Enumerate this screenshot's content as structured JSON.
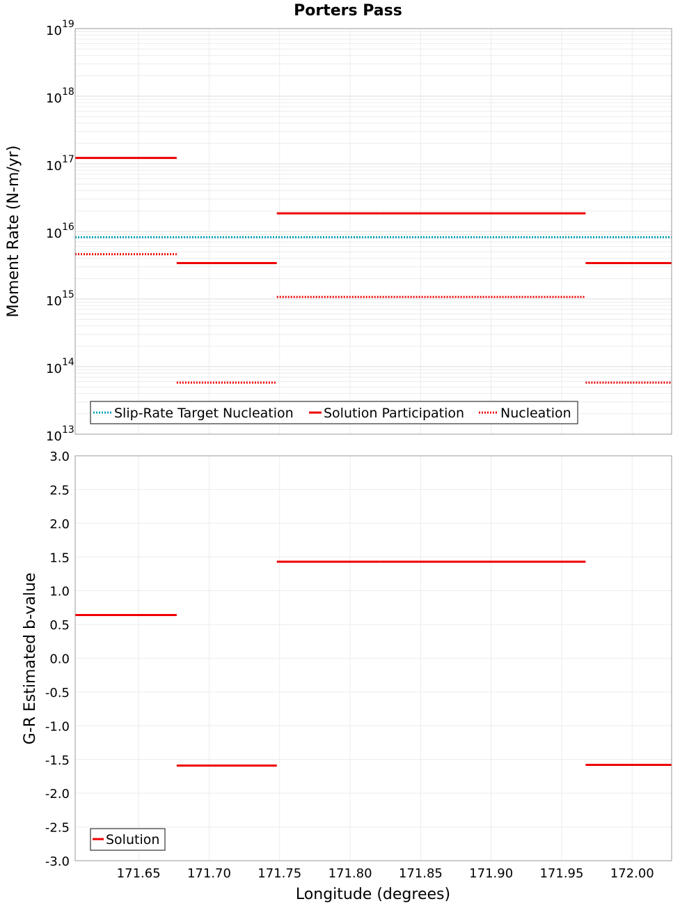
{
  "chart_data": [
    {
      "type": "line",
      "title": "Porters Pass",
      "xlabel": "",
      "ylabel": "Moment Rate (N-m/yr)",
      "yscale": "log",
      "ylim": [
        10000000000000.0,
        1e+19
      ],
      "xlim": [
        171.605,
        172.028
      ],
      "y_ticks": [
        {
          "base": "10",
          "exp": "19",
          "value": 1e+19
        },
        {
          "base": "10",
          "exp": "18",
          "value": 1e+18
        },
        {
          "base": "10",
          "exp": "17",
          "value": 1e+17
        },
        {
          "base": "10",
          "exp": "16",
          "value": 1e+16
        },
        {
          "base": "10",
          "exp": "15",
          "value": 1000000000000000.0
        },
        {
          "base": "10",
          "exp": "14",
          "value": 100000000000000.0
        },
        {
          "base": "10",
          "exp": "13",
          "value": 10000000000000.0
        }
      ],
      "series": [
        {
          "name": "Slip-Rate Target Nucleation",
          "style": "dotted",
          "color": "#00a0b4",
          "segments": [
            [
              171.605,
              172.028,
              8200000000000000.0
            ]
          ]
        },
        {
          "name": "Solution Participation",
          "style": "solid",
          "color": "#ee0000",
          "segments": [
            [
              171.605,
              171.677,
              1.22e+17
            ],
            [
              171.677,
              171.748,
              3400000000000000.0
            ],
            [
              171.748,
              171.821,
              1.85e+16
            ],
            [
              171.821,
              171.894,
              1.85e+16
            ],
            [
              171.894,
              171.967,
              1.85e+16
            ],
            [
              171.967,
              172.028,
              3400000000000000.0
            ]
          ]
        },
        {
          "name": "Nucleation",
          "style": "dotted",
          "color": "#ee0000",
          "segments": [
            [
              171.605,
              171.677,
              4600000000000000.0
            ],
            [
              171.677,
              171.748,
              58000000000000.0
            ],
            [
              171.748,
              171.821,
              1070000000000000.0
            ],
            [
              171.821,
              171.894,
              1070000000000000.0
            ],
            [
              171.894,
              171.967,
              1070000000000000.0
            ],
            [
              171.967,
              172.028,
              58000000000000.0
            ]
          ]
        }
      ],
      "legend": [
        "Slip-Rate Target Nucleation",
        "Solution Participation",
        "Nucleation"
      ],
      "legend_position": "bottom-left"
    },
    {
      "type": "line",
      "title": "",
      "xlabel": "Longitude (degrees)",
      "ylabel": "G-R Estimated b-value",
      "yscale": "linear",
      "ylim": [
        -3.0,
        3.0
      ],
      "xlim": [
        171.605,
        172.028
      ],
      "y_ticks": [
        "3.0",
        "2.5",
        "2.0",
        "1.5",
        "1.0",
        "0.5",
        "0.0",
        "-0.5",
        "-1.0",
        "-1.5",
        "-2.0",
        "-2.5",
        "-3.0"
      ],
      "x_ticks": [
        "171.65",
        "171.70",
        "171.75",
        "171.80",
        "171.85",
        "171.90",
        "171.95",
        "172.00"
      ],
      "series": [
        {
          "name": "Solution",
          "style": "solid",
          "color": "#ee0000",
          "segments": [
            [
              171.605,
              171.677,
              0.64
            ],
            [
              171.677,
              171.748,
              -1.59
            ],
            [
              171.748,
              171.821,
              1.43
            ],
            [
              171.821,
              171.894,
              1.43
            ],
            [
              171.894,
              171.967,
              1.43
            ],
            [
              171.967,
              172.028,
              -1.58
            ]
          ]
        }
      ],
      "legend": [
        "Solution"
      ],
      "legend_position": "bottom-left"
    }
  ]
}
